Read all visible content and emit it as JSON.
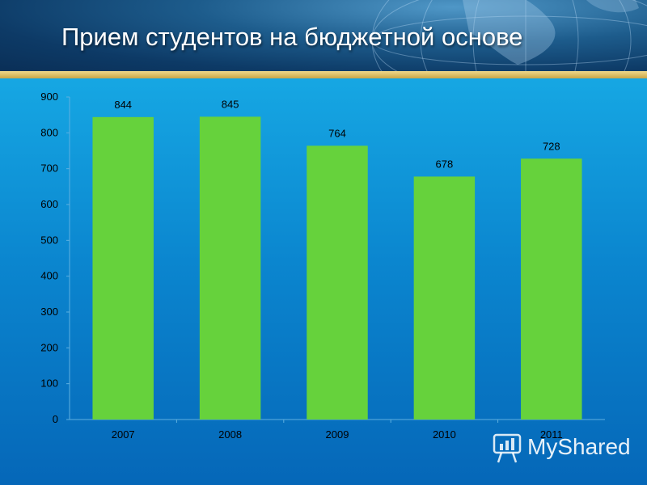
{
  "slide": {
    "title": "Прием студентов на бюджетной основе",
    "watermark": "MyShared"
  },
  "colors": {
    "bar": "#66d23c",
    "header_dark": "#0d3a66",
    "gold": "#d9bb5f",
    "body_top": "#16a7e3",
    "body_bottom": "#0567b8"
  },
  "chart_data": {
    "type": "bar",
    "categories": [
      "2007",
      "2008",
      "2009",
      "2010",
      "2011"
    ],
    "values": [
      844,
      845,
      764,
      678,
      728
    ],
    "data_labels": [
      "844",
      "845",
      "764",
      "678",
      "728"
    ],
    "title": "",
    "xlabel": "",
    "ylabel": "",
    "ylim": [
      0,
      900
    ],
    "yticks": [
      "0",
      "100",
      "200",
      "300",
      "400",
      "500",
      "600",
      "700",
      "800",
      "900"
    ],
    "grid": false,
    "legend": "none"
  }
}
